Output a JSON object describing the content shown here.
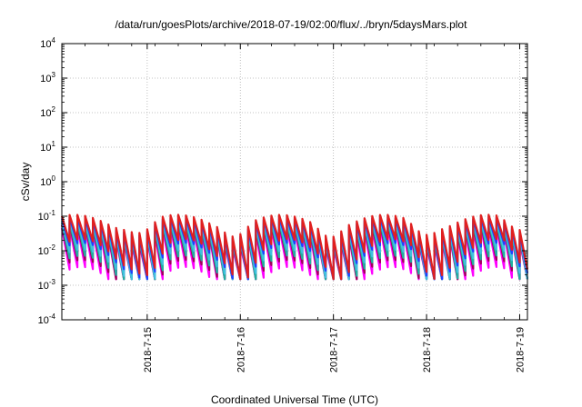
{
  "chart_data": {
    "type": "line",
    "title": "/data/run/goesPlots/archive/2018-07-19/02:00/flux/../bryn/5daysMars.plot",
    "xlabel": "Coordinated Universal Time (UTC)",
    "ylabel": "cSv/day",
    "yscale": "log",
    "ylim": [
      0.0001,
      10000
    ],
    "xlim": [
      "2018-07-14 02:00",
      "2018-07-19 02:00"
    ],
    "y_ticks": [
      {
        "base": "10",
        "exp": "-4",
        "value": 0.0001
      },
      {
        "base": "10",
        "exp": "-3",
        "value": 0.001
      },
      {
        "base": "10",
        "exp": "-2",
        "value": 0.01
      },
      {
        "base": "10",
        "exp": "-1",
        "value": 0.1
      },
      {
        "base": "10",
        "exp": "0",
        "value": 1
      },
      {
        "base": "10",
        "exp": "1",
        "value": 10
      },
      {
        "base": "10",
        "exp": "2",
        "value": 100
      },
      {
        "base": "10",
        "exp": "3",
        "value": 1000
      },
      {
        "base": "10",
        "exp": "4",
        "value": 10000
      }
    ],
    "x_ticks": [
      "2018-7-15",
      "2018-7-16",
      "2018-7-17",
      "2018-7-18",
      "2018-7-19"
    ],
    "grid": true,
    "legend": "none",
    "pattern": {
      "period_hours": 2,
      "start": "2018-07-14 02:00",
      "end": "2018-07-19 02:00",
      "dip_days": [
        "2018-7-15",
        "2018-7-16",
        "2018-7-17",
        "2018-7-18",
        "2018-7-19"
      ]
    },
    "series": [
      {
        "color": "#ff00ff",
        "peak": 0.045,
        "trough": 0.0028
      },
      {
        "color": "#a0005a",
        "peak": 0.055,
        "trough": 0.0045
      },
      {
        "color": "#20b0a0",
        "peak": 0.065,
        "trough": 0.006
      },
      {
        "color": "#40c0e0",
        "peak": 0.075,
        "trough": 0.009
      },
      {
        "color": "#2040ff",
        "peak": 0.085,
        "trough": 0.014
      },
      {
        "color": "#e02020",
        "peak": 0.1,
        "trough": 0.018
      }
    ]
  }
}
